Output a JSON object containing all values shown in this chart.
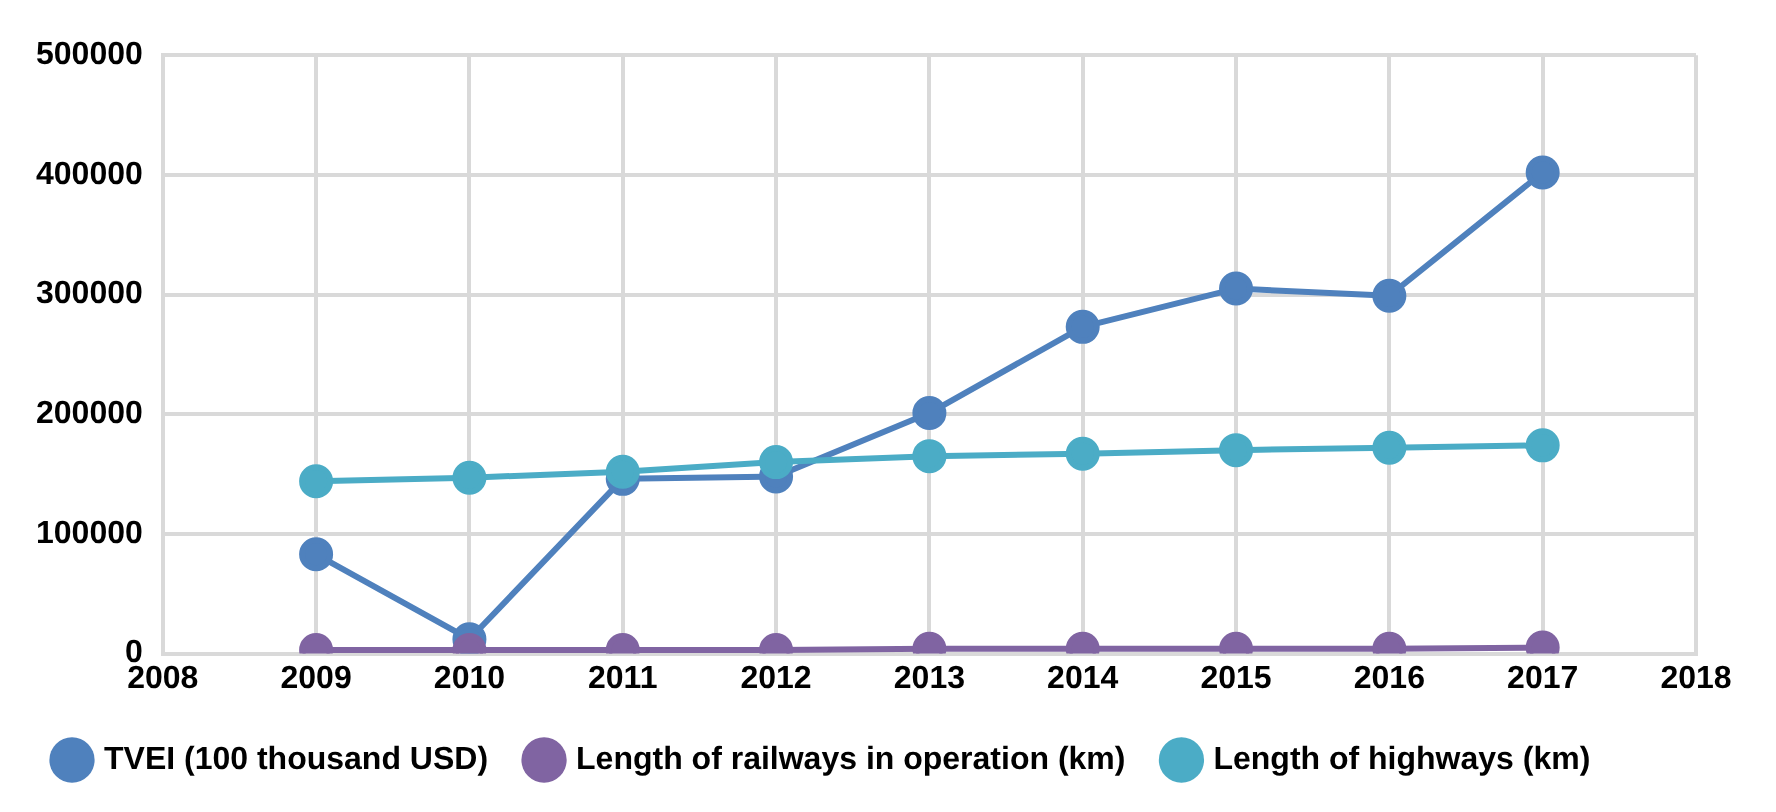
{
  "chart_data": {
    "type": "line",
    "x": [
      2009,
      2010,
      2011,
      2012,
      2013,
      2014,
      2015,
      2016,
      2017
    ],
    "series": [
      {
        "name": "TVEI (100 thousand USD)",
        "color": "#4f81bd",
        "values": [
          83000,
          12000,
          146000,
          148000,
          201000,
          273000,
          305000,
          299000,
          402000
        ]
      },
      {
        "name": "Length of railways in operation (km)",
        "color": "#8064a2",
        "values": [
          3000,
          3000,
          3000,
          3000,
          4000,
          4000,
          4000,
          4000,
          5000
        ]
      },
      {
        "name": "Length of highways (km)",
        "color": "#4bacc6",
        "values": [
          144000,
          147000,
          152000,
          160000,
          165000,
          167000,
          170000,
          172000,
          174000
        ]
      }
    ],
    "xlim": [
      2008,
      2018
    ],
    "xticks": [
      2008,
      2009,
      2010,
      2011,
      2012,
      2013,
      2014,
      2015,
      2016,
      2017,
      2018
    ],
    "ylim": [
      0,
      500000
    ],
    "yticks": [
      0,
      100000,
      200000,
      300000,
      400000,
      500000
    ],
    "grid": true,
    "legend": "bottom",
    "marker": "circle",
    "line_style": "solid"
  }
}
